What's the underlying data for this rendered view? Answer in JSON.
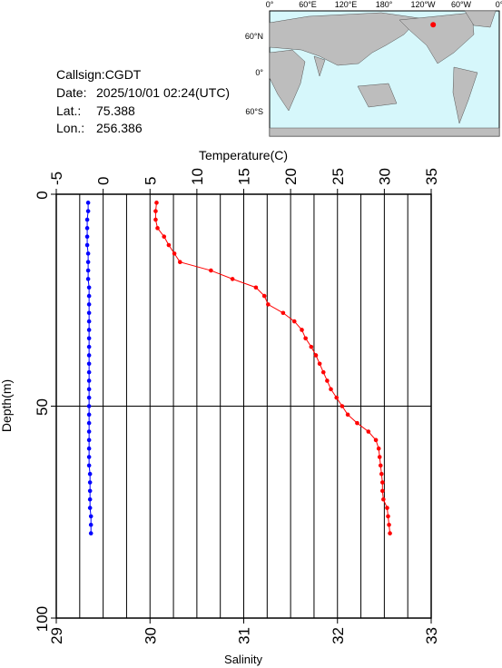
{
  "chart_data": {
    "type": "profile",
    "xlabel": "Salinity",
    "x2label": "Temperature(C)",
    "ylabel": "Depth(m)",
    "xlim": [
      29,
      33
    ],
    "xticks": [
      29,
      30,
      31,
      32,
      33
    ],
    "x2lim": [
      -5,
      35
    ],
    "x2ticks": [
      -5,
      0,
      5,
      10,
      15,
      20,
      25,
      30,
      35
    ],
    "x2grid": [
      -2.5,
      0,
      2.5,
      5,
      7.5,
      10,
      12.5,
      15,
      17.5,
      20,
      22.5,
      25,
      27.5,
      30,
      32.5
    ],
    "ylim": [
      0,
      100
    ],
    "yticks": [
      0,
      50,
      100
    ],
    "grid": true,
    "depth": [
      2,
      4,
      6,
      8,
      10,
      12,
      14,
      16,
      18,
      20,
      22,
      24,
      26,
      28,
      30,
      32,
      34,
      36,
      38,
      40,
      42,
      44,
      46,
      48,
      50,
      52,
      54,
      56,
      58,
      60,
      62,
      64,
      66,
      68,
      70,
      72,
      74,
      76,
      78,
      80
    ],
    "series": [
      {
        "axis": "x2",
        "color": "#0000ff",
        "values": [
          -1.6,
          -1.6,
          -1.7,
          -1.7,
          -1.7,
          -1.7,
          -1.6,
          -1.6,
          -1.6,
          -1.6,
          -1.5,
          -1.5,
          -1.5,
          -1.5,
          -1.5,
          -1.5,
          -1.5,
          -1.5,
          -1.5,
          -1.5,
          -1.5,
          -1.5,
          -1.5,
          -1.5,
          -1.5,
          -1.5,
          -1.5,
          -1.5,
          -1.5,
          -1.5,
          -1.5,
          -1.5,
          -1.4,
          -1.4,
          -1.4,
          -1.4,
          -1.4,
          -1.3,
          -1.3,
          -1.3
        ]
      },
      {
        "axis": "x",
        "color": "#ff0000",
        "values": [
          30.07,
          30.06,
          30.06,
          30.08,
          30.15,
          30.2,
          30.26,
          30.32,
          30.65,
          30.88,
          31.13,
          31.22,
          31.26,
          31.42,
          31.54,
          31.62,
          31.66,
          31.72,
          31.77,
          31.81,
          31.85,
          31.89,
          31.93,
          31.99,
          32.05,
          32.11,
          32.21,
          32.33,
          32.41,
          32.44,
          32.45,
          32.46,
          32.47,
          32.48,
          32.48,
          32.49,
          32.53,
          32.54,
          32.55,
          32.56
        ]
      }
    ]
  },
  "info": {
    "callsign": "Callsign:CGDT",
    "date_label": "Date:",
    "date": "2025/10/01 02:24(UTC)",
    "lat_label": "Lat.:",
    "lat": 75.388,
    "lon_label": "Lon.:",
    "lon": 256.386
  },
  "map": {
    "xlabels": [
      "0°",
      "60°E",
      "120°E",
      "180°",
      "120°W",
      "60°W",
      "0°"
    ],
    "ylabels": [
      "60°N",
      "0°",
      "60°S"
    ]
  }
}
